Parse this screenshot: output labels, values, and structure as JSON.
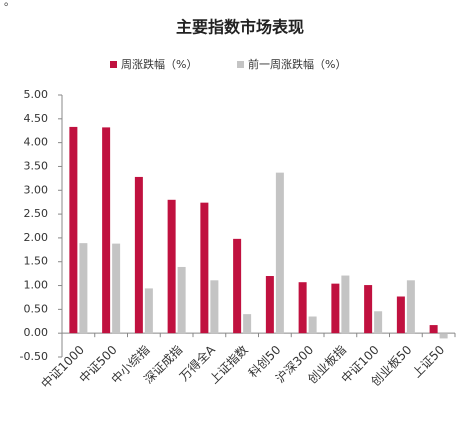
{
  "corner_mark": "。",
  "chart_data": {
    "type": "bar",
    "title": "主要指数市场表现",
    "categories": [
      "中证1000",
      "中证500",
      "中小综指",
      "深证成指",
      "万得全A",
      "上证指数",
      "科创50",
      "沪深300",
      "创业板指",
      "中证100",
      "创业板50",
      "上证50"
    ],
    "series": [
      {
        "name": "周涨跌幅（%）",
        "color": "#c0113f",
        "values": [
          4.33,
          4.32,
          3.28,
          2.8,
          2.74,
          1.98,
          1.2,
          1.07,
          1.04,
          1.01,
          0.77,
          0.17
        ]
      },
      {
        "name": "前一周涨跌幅（%）",
        "color": "#c4c4c4",
        "values": [
          1.89,
          1.88,
          0.94,
          1.39,
          1.11,
          0.4,
          3.37,
          0.35,
          1.21,
          0.46,
          1.11,
          -0.11
        ]
      }
    ],
    "ylim": [
      -0.5,
      5
    ],
    "yticks": [
      {
        "value": -0.5,
        "label": "-0.50"
      },
      {
        "value": 0,
        "label": "0.00"
      },
      {
        "value": 0.5,
        "label": "0.50"
      },
      {
        "value": 1,
        "label": "1.00"
      },
      {
        "value": 1.5,
        "label": "1.50"
      },
      {
        "value": 2,
        "label": "2.00"
      },
      {
        "value": 2.5,
        "label": "2.50"
      },
      {
        "value": 3,
        "label": "3.00"
      },
      {
        "value": 3.5,
        "label": "3.50"
      },
      {
        "value": 4,
        "label": "4.00"
      },
      {
        "value": 4.5,
        "label": "4.50"
      },
      {
        "value": 5,
        "label": "5.00"
      }
    ],
    "grid": false
  }
}
